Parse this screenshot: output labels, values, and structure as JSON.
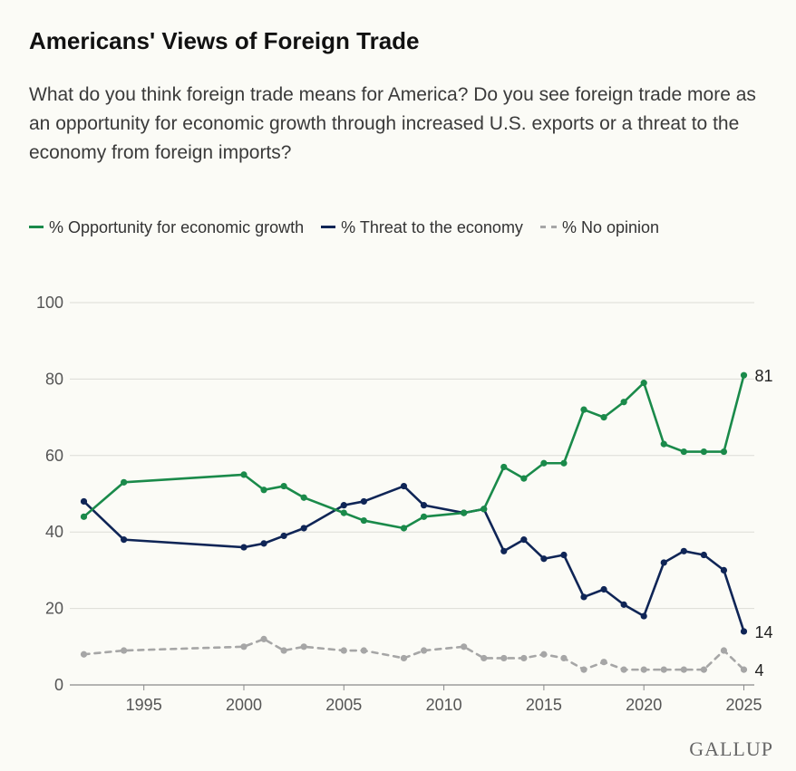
{
  "chart_data": {
    "type": "line",
    "title": "Americans' Views of Foreign Trade",
    "subtitle": "What do you think foreign trade means for America? Do you see foreign trade more as an opportunity for economic growth through increased U.S. exports or a threat to the economy from foreign imports?",
    "xlabel": "",
    "ylabel": "",
    "ylim": [
      0,
      100
    ],
    "yticks": [
      0,
      20,
      40,
      60,
      80,
      100
    ],
    "xlim": [
      1992,
      2025
    ],
    "xticks": [
      1995,
      2000,
      2005,
      2010,
      2015,
      2020,
      2025
    ],
    "grid": true,
    "legend_position": "top",
    "x": [
      1992,
      1994,
      2000,
      2001,
      2002,
      2003,
      2005,
      2006,
      2008,
      2009,
      2011,
      2012,
      2013,
      2014,
      2015,
      2016,
      2017,
      2018,
      2019,
      2020,
      2021,
      2022,
      2023,
      2024,
      2025
    ],
    "series": [
      {
        "name": "% Opportunity for economic growth",
        "color": "#1a8a4a",
        "dash": false,
        "values": [
          44,
          53,
          55,
          51,
          52,
          49,
          45,
          43,
          41,
          44,
          45,
          46,
          57,
          54,
          58,
          58,
          72,
          70,
          74,
          79,
          63,
          61,
          61,
          61,
          81
        ],
        "end_label": "81"
      },
      {
        "name": "% Threat to the economy",
        "color": "#0f2556",
        "dash": false,
        "values": [
          48,
          38,
          36,
          37,
          39,
          41,
          47,
          48,
          52,
          47,
          45,
          46,
          35,
          38,
          33,
          34,
          23,
          25,
          21,
          18,
          32,
          35,
          34,
          30,
          14
        ],
        "end_label": "14"
      },
      {
        "name": "% No opinion",
        "color": "#a6a6a6",
        "dash": true,
        "values": [
          8,
          9,
          10,
          12,
          9,
          10,
          9,
          9,
          7,
          9,
          10,
          7,
          7,
          7,
          8,
          7,
          4,
          6,
          4,
          4,
          4,
          4,
          4,
          9,
          4
        ],
        "end_label": "4"
      }
    ]
  },
  "branding": {
    "logo_text": "GALLUP"
  }
}
